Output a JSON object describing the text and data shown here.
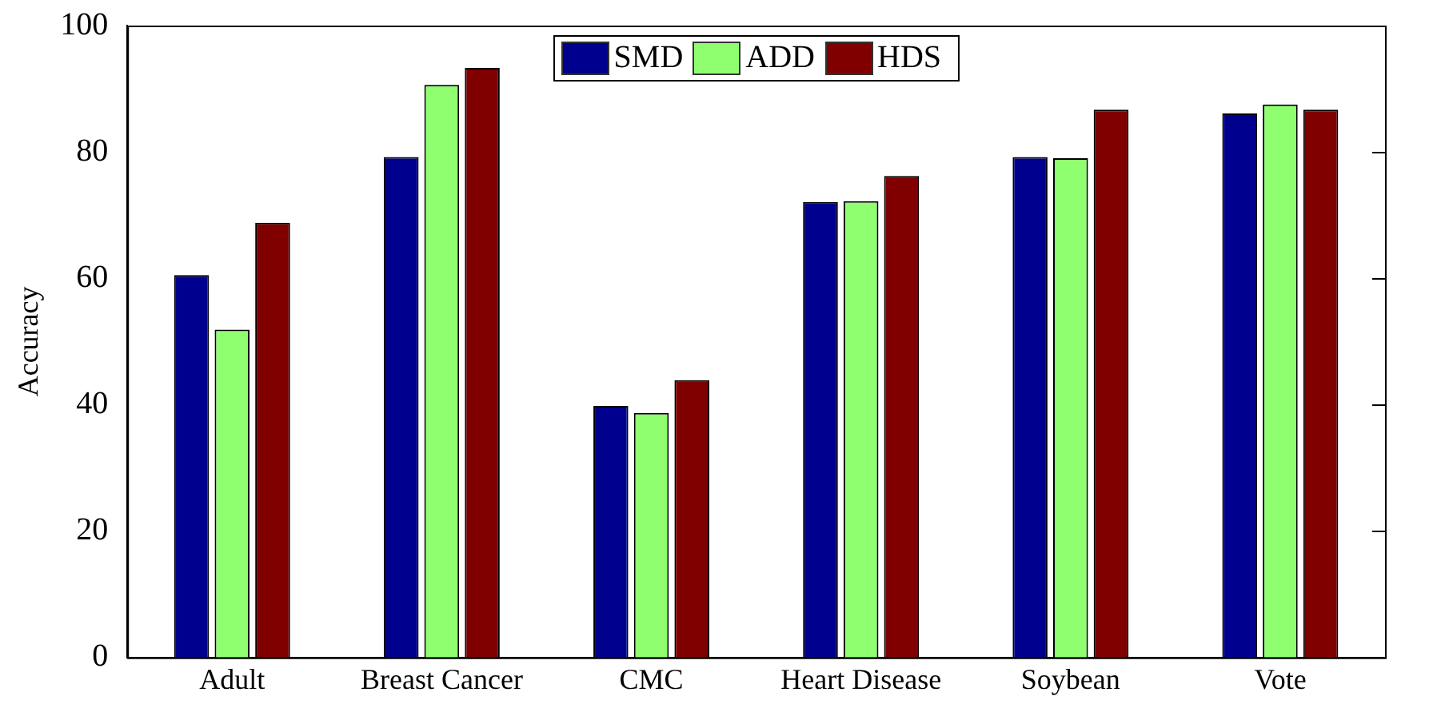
{
  "chart_data": {
    "type": "bar",
    "ylabel": "Accuracy",
    "categories": [
      "Adult",
      "Breast Cancer",
      "CMC",
      "Heart Disease",
      "Soybean",
      "Vote"
    ],
    "series": [
      {
        "name": "SMD",
        "color": "#00008f",
        "values": [
          60.5,
          79.2,
          39.8,
          72.1,
          79.2,
          86.1
        ]
      },
      {
        "name": "ADD",
        "color": "#8fff6f",
        "values": [
          51.9,
          90.6,
          38.7,
          72.2,
          79.0,
          87.5
        ]
      },
      {
        "name": "HDS",
        "color": "#800000",
        "values": [
          68.8,
          93.3,
          43.9,
          76.2,
          86.7,
          86.7
        ]
      }
    ],
    "ylim": [
      0,
      100
    ],
    "yticks": [
      0,
      20,
      40,
      60,
      80,
      100
    ],
    "grid": false,
    "legend": "top"
  }
}
